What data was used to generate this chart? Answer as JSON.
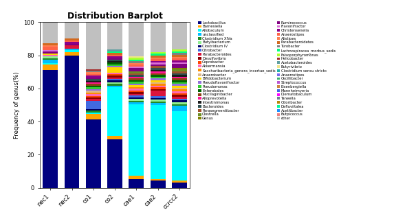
{
  "title": "Distribution Barplot",
  "ylabel": "Frequency of genus(%)",
  "groups": [
    "nec1",
    "nec2",
    "co1",
    "co2",
    "cae1",
    "cae2",
    "ccrcc2"
  ],
  "ylim": [
    0,
    100
  ],
  "yticks": [
    0,
    20,
    40,
    60,
    80,
    100
  ],
  "genera": [
    "Lactobacillus",
    "Barnesiella",
    "Allobaculum",
    "unclassified",
    "Clostridium XIVa",
    "Butyibacterium",
    "Clostridium IV",
    "Citrobacter",
    "Parabacteroides",
    "Desulfovibrio",
    "Coprobacter",
    "Akkermansia",
    "Saccharibacteria_genera_incertae_sedis",
    "Anaerobacter",
    "Bifidobacterium",
    "Pseudoflavonifractor",
    "Pseudomonas",
    "Enterobales",
    "Mucilaginibacter",
    "Alloprevotella",
    "Intestinimonas",
    "Bacteroides",
    "Parasegmentibacter",
    "Clostrella",
    "Genus",
    "Ruminococcus",
    "Flavonifractor",
    "Christensenella",
    "Anaerostipes",
    "Alistipes",
    "Parabacteroidetes",
    "Turobacter",
    "Lachnospiracea_morbus_sedis",
    "Falsoporphyromonas",
    "Helicobacter",
    "Acetobacteroides",
    "Butyrivibrio",
    "Clostridium sensu stricto",
    "Anaerostipes",
    "Oscillibacter",
    "Streptococcus",
    "Eisenbergiella",
    "Mannheimyeria",
    "Diematobaculum",
    "Taneella",
    "Odoribacter",
    "Defluviitalea",
    "Acetitbacter",
    "Butpicoccus",
    "other"
  ],
  "colors": [
    "#000080",
    "#FFA500",
    "#00FFFF",
    "#00BFFF",
    "#228B22",
    "#90EE90",
    "#000066",
    "#4169E1",
    "#DC143C",
    "#8B0000",
    "#FF4500",
    "#FF69B4",
    "#FF8C00",
    "#DEB887",
    "#FFD700",
    "#9370DB",
    "#32CD32",
    "#006400",
    "#8B4513",
    "#FF1493",
    "#1C1C1C",
    "#2F4F4F",
    "#A0522D",
    "#6B8E23",
    "#808000",
    "#800080",
    "#DA70D6",
    "#8B008B",
    "#FF6347",
    "#FF7F50",
    "#D2691E",
    "#808080",
    "#00FF7F",
    "#ADFF2F",
    "#A52A2A",
    "#5F9EA0",
    "#F0E68C",
    "#20B2AA",
    "#7B68EE",
    "#3CB371",
    "#BA55D3",
    "#CD853F",
    "#4169E1",
    "#FF00FF",
    "#708090",
    "#B8860B",
    "#00FA9A",
    "#1E90FF",
    "#F08080",
    "#C0C0C0"
  ],
  "data": {
    "nec1": [
      72,
      3,
      1,
      2,
      1,
      1,
      0,
      0,
      0,
      0,
      0,
      1,
      0,
      0,
      1,
      0,
      0,
      0,
      0,
      0,
      0,
      0,
      0,
      0,
      0,
      1,
      1,
      0,
      2,
      1,
      1,
      0,
      0,
      0,
      0,
      0,
      0,
      0,
      0,
      0,
      0,
      0,
      0,
      0,
      0,
      0,
      0,
      0,
      0,
      13
    ],
    "nec2": [
      80,
      2,
      1,
      1,
      0,
      0,
      0,
      0,
      2,
      0,
      0,
      0,
      0,
      0,
      0,
      0,
      0,
      0,
      0,
      0,
      0,
      0,
      0,
      0,
      0,
      1,
      0,
      1,
      1,
      0,
      1,
      0,
      0,
      0,
      0,
      0,
      0,
      0,
      0,
      0,
      0,
      0,
      0,
      0,
      0,
      0,
      0,
      0,
      0,
      10
    ],
    "co1": [
      41,
      3,
      1,
      0,
      1,
      0,
      1,
      5,
      1,
      1,
      1,
      1,
      1,
      1,
      0,
      1,
      1,
      1,
      1,
      1,
      1,
      1,
      0,
      0,
      0,
      1,
      0,
      1,
      1,
      1,
      0,
      1,
      0,
      0,
      1,
      0,
      0,
      0,
      0,
      0,
      0,
      0,
      0,
      0,
      0,
      0,
      0,
      0,
      0,
      28
    ],
    "co2": [
      30,
      2,
      30,
      1,
      1,
      1,
      1,
      1,
      1,
      1,
      1,
      1,
      0,
      0,
      3,
      1,
      1,
      1,
      0,
      0,
      1,
      1,
      0,
      0,
      0,
      1,
      0,
      1,
      1,
      0,
      1,
      0,
      1,
      0,
      0,
      1,
      0,
      0,
      0,
      0,
      0,
      0,
      0,
      0,
      0,
      0,
      0,
      0,
      0,
      17
    ],
    "cae1": [
      5,
      2,
      42,
      1,
      1,
      1,
      1,
      1,
      1,
      1,
      1,
      1,
      1,
      0,
      1,
      1,
      1,
      1,
      1,
      1,
      0,
      1,
      1,
      1,
      0,
      2,
      1,
      0,
      1,
      1,
      0,
      1,
      1,
      1,
      0,
      0,
      1,
      0,
      0,
      0,
      0,
      0,
      0,
      0,
      0,
      0,
      0,
      0,
      0,
      20
    ],
    "cae2": [
      4,
      1,
      42,
      1,
      1,
      1,
      1,
      1,
      3,
      1,
      1,
      1,
      1,
      1,
      1,
      1,
      1,
      1,
      1,
      1,
      1,
      1,
      1,
      0,
      0,
      1,
      1,
      1,
      1,
      1,
      1,
      0,
      1,
      1,
      0,
      0,
      0,
      0,
      0,
      0,
      0,
      0,
      0,
      0,
      0,
      0,
      0,
      0,
      0,
      17
    ],
    "ccrcc2": [
      3,
      1,
      38,
      3,
      1,
      1,
      1,
      1,
      1,
      1,
      1,
      1,
      1,
      1,
      1,
      1,
      1,
      1,
      1,
      1,
      1,
      1,
      1,
      1,
      1,
      2,
      1,
      1,
      1,
      1,
      1,
      1,
      1,
      1,
      0,
      0,
      0,
      0,
      0,
      0,
      0,
      0,
      0,
      0,
      0,
      0,
      0,
      0,
      0,
      15
    ]
  },
  "fig_width": 5.76,
  "fig_height": 3.22,
  "dpi": 100,
  "title_fontsize": 9,
  "axis_fontsize": 6,
  "tick_fontsize": 6,
  "legend_fontsize": 3.8,
  "bar_width": 0.7
}
